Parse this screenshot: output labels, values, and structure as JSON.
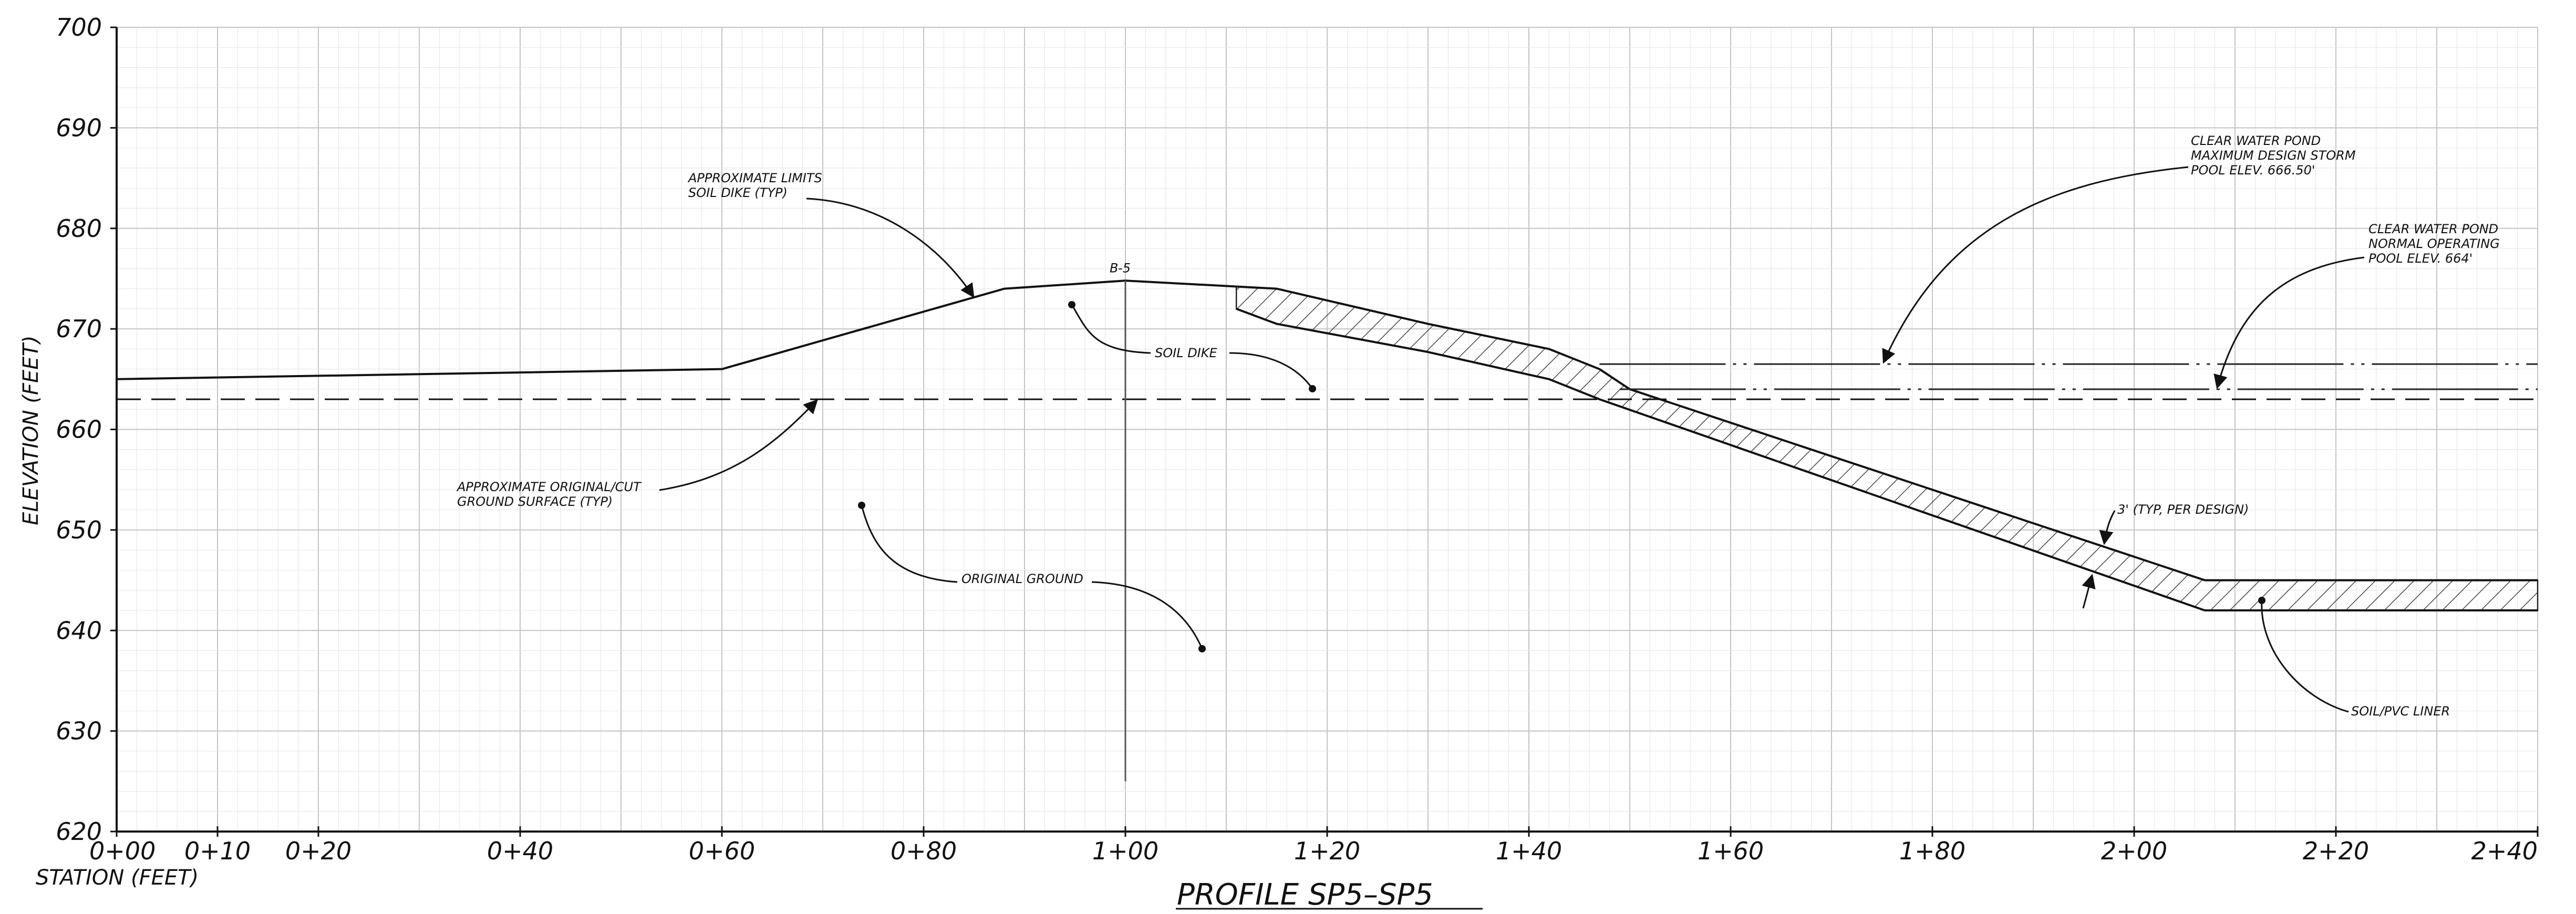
{
  "drawing": {
    "title": "PROFILE SP5–SP5",
    "x_axis_label": "STATION (FEET)",
    "y_axis_label": "ELEVATION (FEET)"
  },
  "chart_data": {
    "type": "line",
    "x_ticks": [
      {
        "value": 0,
        "label": "0+00"
      },
      {
        "value": 10,
        "label": "0+10"
      },
      {
        "value": 20,
        "label": "0+20"
      },
      {
        "value": 40,
        "label": "0+40"
      },
      {
        "value": 60,
        "label": "0+60"
      },
      {
        "value": 80,
        "label": "0+80"
      },
      {
        "value": 100,
        "label": "1+00"
      },
      {
        "value": 120,
        "label": "1+20"
      },
      {
        "value": 140,
        "label": "1+40"
      },
      {
        "value": 160,
        "label": "1+60"
      },
      {
        "value": 180,
        "label": "1+80"
      },
      {
        "value": 200,
        "label": "2+00"
      },
      {
        "value": 220,
        "label": "2+20"
      },
      {
        "value": 240,
        "label": "2+40"
      }
    ],
    "y_ticks": [
      {
        "value": 620,
        "label": "620"
      },
      {
        "value": 630,
        "label": "630"
      },
      {
        "value": 640,
        "label": "640"
      },
      {
        "value": 650,
        "label": "650"
      },
      {
        "value": 660,
        "label": "660"
      },
      {
        "value": 670,
        "label": "670"
      },
      {
        "value": 680,
        "label": "680"
      },
      {
        "value": 690,
        "label": "690"
      },
      {
        "value": 700,
        "label": "700"
      }
    ],
    "xlim": [
      0,
      240
    ],
    "ylim": [
      620,
      700
    ],
    "grid": true,
    "series": [
      {
        "id": "finished-grade",
        "style": "solid",
        "x": [
          0,
          60,
          88,
          100,
          115,
          130,
          142,
          147,
          150,
          207,
          240
        ],
        "y": [
          665,
          666,
          674,
          674.8,
          674,
          670.5,
          668,
          666,
          664,
          645,
          645
        ]
      },
      {
        "id": "original-ground",
        "style": "dashed",
        "x": [
          0,
          240
        ],
        "y": [
          663,
          663
        ]
      },
      {
        "id": "max-storm-pool",
        "style": "dash-dot-dot",
        "x": [
          147,
          240
        ],
        "y": [
          666.5,
          666.5
        ]
      },
      {
        "id": "normal-pool",
        "style": "dash-dot-dot",
        "x": [
          149,
          240
        ],
        "y": [
          664,
          664
        ]
      },
      {
        "id": "liner-bottom",
        "style": "solid",
        "x": [
          111,
          115,
          130,
          142,
          147,
          207,
          240
        ],
        "y": [
          672,
          670.5,
          667.7,
          665,
          663,
          642,
          642
        ]
      }
    ],
    "boring": {
      "label": "B-5",
      "x": 100,
      "y_top": 674.8,
      "y_bottom": 625
    }
  },
  "annotations": {
    "soil_dike_limits": [
      "APPROXIMATE LIMITS",
      "SOIL DIKE (TYP)"
    ],
    "original_cut_surface": [
      "APPROXIMATE ORIGINAL/CUT",
      "GROUND SURFACE (TYP)"
    ],
    "soil_dike": "SOIL DIKE",
    "original_ground": "ORIGINAL GROUND",
    "max_pool": [
      "CLEAR WATER POND",
      "MAXIMUM DESIGN STORM",
      "POOL ELEV. 666.50'"
    ],
    "normal_pool": [
      "CLEAR WATER POND",
      "NORMAL OPERATING",
      "POOL ELEV. 664'"
    ],
    "liner_thickness": "3' (TYP, PER DESIGN)",
    "liner": "SOIL/PVC LINER"
  }
}
